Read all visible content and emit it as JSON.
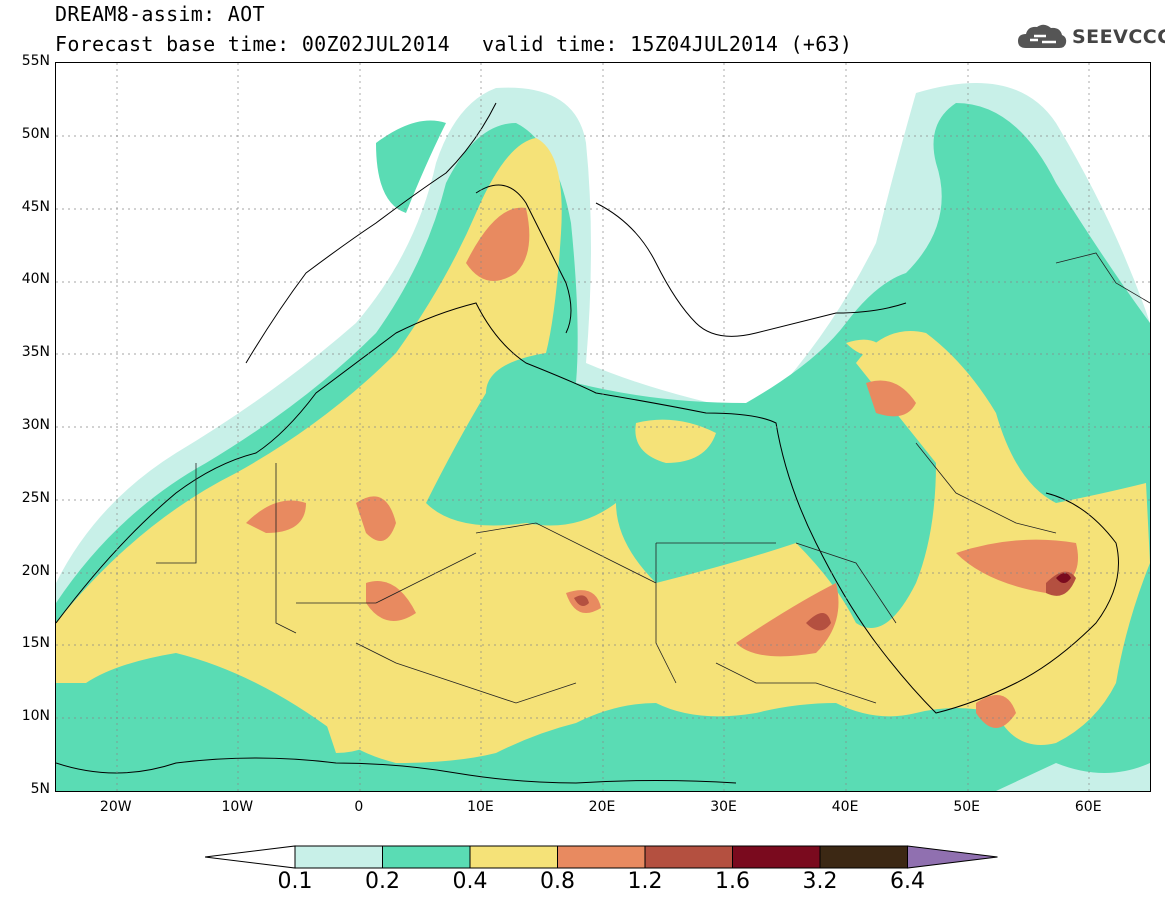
{
  "header": {
    "title": "DREAM8-assim: AOT",
    "forecast_base": "Forecast base time: 00Z02JUL2014",
    "valid_time": "valid time: 15Z04JUL2014 (+63)"
  },
  "logo": {
    "text": "SEEVCCC",
    "icon": "cloud-icon",
    "color": "#555555"
  },
  "map": {
    "lat_labels": [
      "55N",
      "50N",
      "45N",
      "40N",
      "35N",
      "30N",
      "25N",
      "20N",
      "15N",
      "10N",
      "5N"
    ],
    "lon_labels": [
      "20W",
      "10W",
      "0",
      "10E",
      "20E",
      "30E",
      "40E",
      "50E",
      "60E"
    ],
    "lat_range": [
      5,
      55
    ],
    "lon_range": [
      -25,
      65
    ]
  },
  "legend": {
    "values": [
      "0.1",
      "0.2",
      "0.4",
      "0.8",
      "1.2",
      "1.6",
      "3.2",
      "6.4"
    ],
    "colors": [
      "#c8f0e8",
      "#5adcb4",
      "#f5e278",
      "#e88a60",
      "#b45040",
      "#7a0a1e",
      "#3c2814",
      "#9070b0"
    ]
  }
}
